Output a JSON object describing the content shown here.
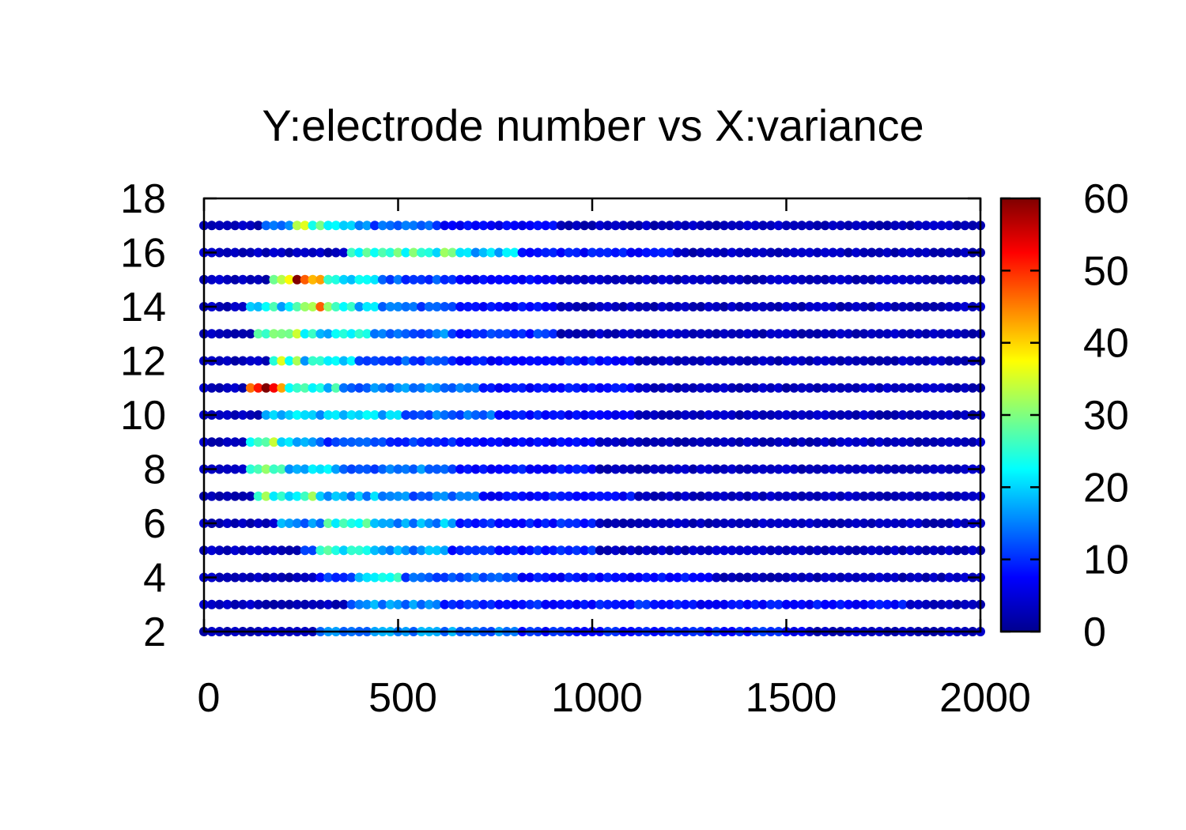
{
  "chart_data": {
    "type": "scatter",
    "title": "Y:electrode number vs X:variance",
    "xlabel": "",
    "ylabel": "",
    "xlim": [
      0,
      2000
    ],
    "ylim": [
      2,
      18
    ],
    "x_ticks": [
      "0",
      "500",
      "1000",
      "1500",
      "2000"
    ],
    "y_ticks": [
      "2",
      "4",
      "6",
      "8",
      "10",
      "12",
      "14",
      "16",
      "18"
    ],
    "grid": false,
    "colorbar": {
      "range": [
        0,
        60
      ],
      "ticks": [
        "0",
        "10",
        "20",
        "30",
        "40",
        "50",
        "60"
      ],
      "colormap": "jet"
    },
    "point_spacing": 20,
    "rows": [
      {
        "y": 2,
        "hot": [
          [
            300,
            800,
            15
          ],
          [
            400,
            250,
            10
          ],
          [
            800,
            1500,
            9
          ],
          [
            1400,
            1550,
            7
          ]
        ]
      },
      {
        "y": 3,
        "hot": [
          [
            370,
            600,
            15
          ],
          [
            600,
            1200,
            9
          ],
          [
            1200,
            1800,
            8
          ]
        ]
      },
      {
        "y": 4,
        "hot": [
          [
            300,
            400,
            10
          ],
          [
            400,
            500,
            24
          ],
          [
            500,
            800,
            12
          ],
          [
            800,
            1300,
            8
          ]
        ]
      },
      {
        "y": 5,
        "hot": [
          [
            250,
            350,
            10
          ],
          [
            300,
            450,
            24
          ],
          [
            450,
            620,
            16
          ],
          [
            620,
            1000,
            9
          ]
        ]
      },
      {
        "y": 6,
        "hot": [
          [
            200,
            300,
            15
          ],
          [
            320,
            450,
            25
          ],
          [
            450,
            650,
            17
          ],
          [
            650,
            1000,
            9
          ]
        ]
      },
      {
        "y": 7,
        "hot": [
          [
            130,
            300,
            26
          ],
          [
            300,
            500,
            17
          ],
          [
            500,
            700,
            14
          ],
          [
            700,
            1100,
            8
          ]
        ]
      },
      {
        "y": 8,
        "hot": [
          [
            120,
            200,
            33
          ],
          [
            200,
            350,
            20
          ],
          [
            350,
            650,
            14
          ],
          [
            650,
            1000,
            8
          ]
        ]
      },
      {
        "y": 9,
        "hot": [
          [
            120,
            180,
            30
          ],
          [
            180,
            280,
            18
          ],
          [
            280,
            650,
            11
          ],
          [
            650,
            1000,
            7
          ]
        ]
      },
      {
        "y": 10,
        "hot": [
          [
            150,
            300,
            18
          ],
          [
            300,
            500,
            20
          ],
          [
            500,
            750,
            13
          ],
          [
            750,
            1100,
            8
          ]
        ]
      },
      {
        "y": 11,
        "hot": [
          [
            120,
            200,
            45
          ],
          [
            155,
            170,
            60
          ],
          [
            200,
            350,
            22
          ],
          [
            350,
            700,
            14
          ],
          [
            700,
            1100,
            8
          ]
        ]
      },
      {
        "y": 12,
        "hot": [
          [
            180,
            240,
            30
          ],
          [
            240,
            380,
            21
          ],
          [
            380,
            650,
            12
          ],
          [
            650,
            1100,
            8
          ]
        ]
      },
      {
        "y": 13,
        "hot": [
          [
            130,
            250,
            28
          ],
          [
            250,
            420,
            22
          ],
          [
            420,
            650,
            14
          ],
          [
            650,
            900,
            10
          ]
        ]
      },
      {
        "y": 14,
        "hot": [
          [
            120,
            260,
            22
          ],
          [
            260,
            320,
            38
          ],
          [
            320,
            450,
            21
          ],
          [
            450,
            650,
            13
          ],
          [
            650,
            900,
            8
          ]
        ]
      },
      {
        "y": 15,
        "hot": [
          [
            180,
            300,
            35
          ],
          [
            240,
            260,
            50
          ],
          [
            300,
            450,
            22
          ],
          [
            450,
            650,
            12
          ],
          [
            650,
            900,
            7
          ]
        ]
      },
      {
        "y": 16,
        "hot": [
          [
            380,
            500,
            24
          ],
          [
            490,
            510,
            38
          ],
          [
            500,
            650,
            26
          ],
          [
            650,
            800,
            18
          ],
          [
            800,
            1200,
            8
          ]
        ]
      },
      {
        "y": 17,
        "hot": [
          [
            150,
            230,
            14
          ],
          [
            230,
            300,
            30
          ],
          [
            300,
            420,
            18
          ],
          [
            420,
            600,
            12
          ],
          [
            600,
            900,
            7
          ]
        ]
      }
    ]
  }
}
